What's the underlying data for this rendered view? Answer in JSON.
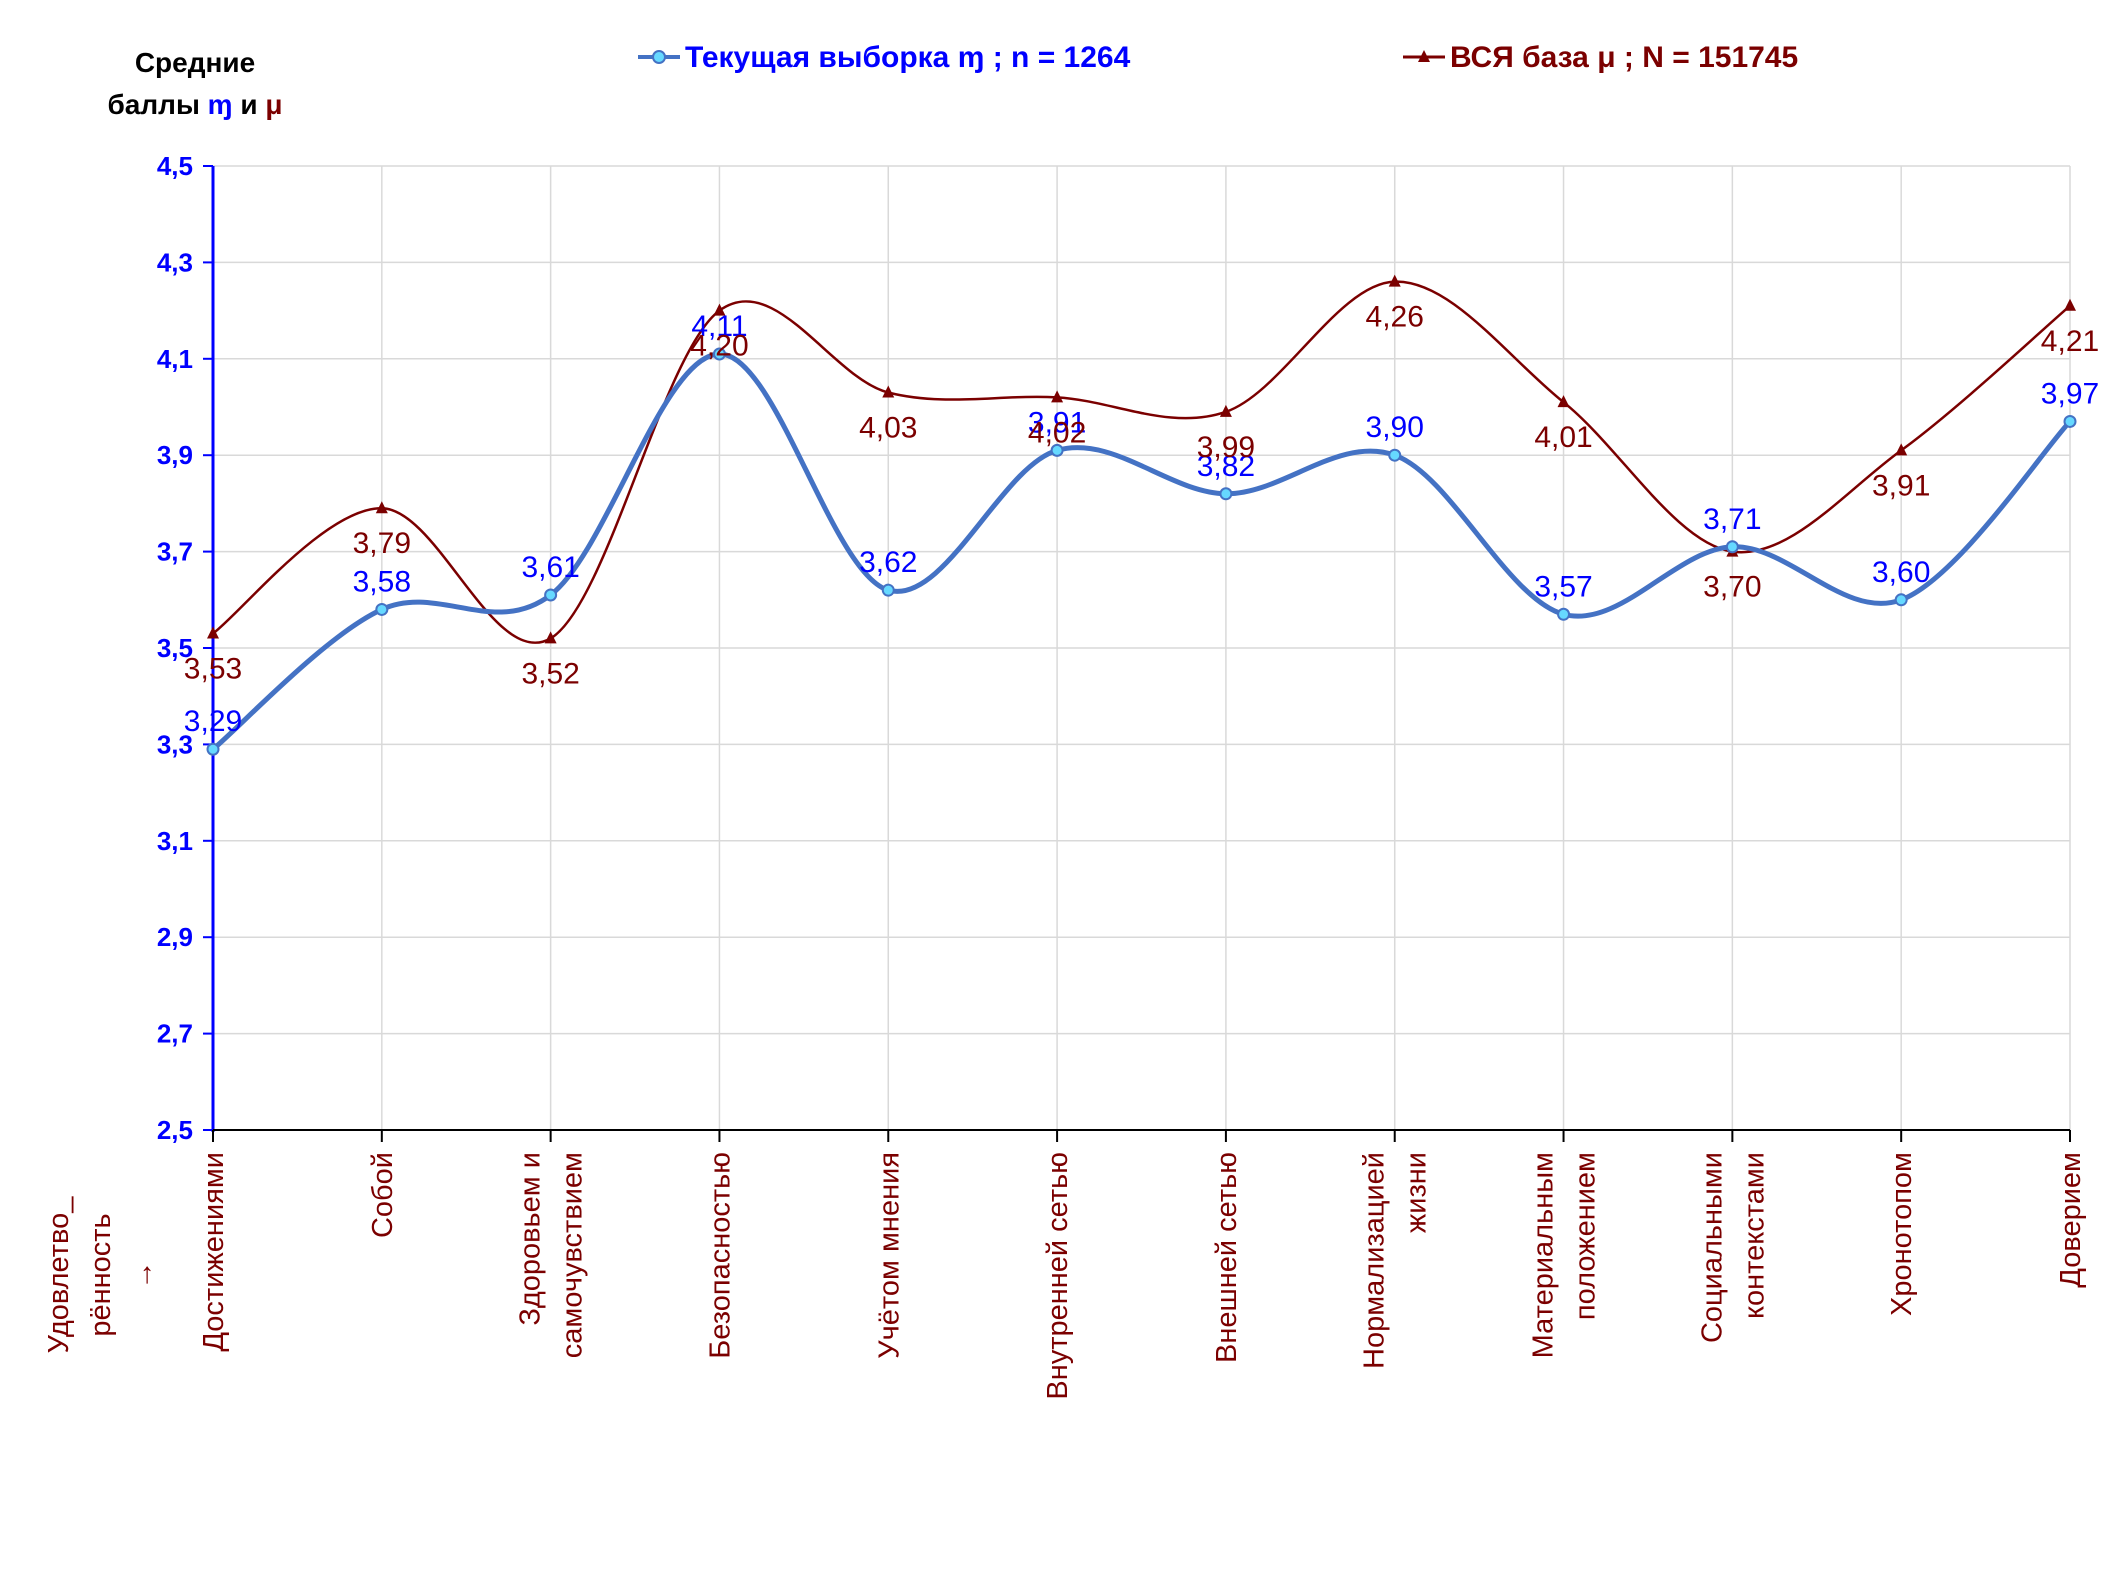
{
  "ylabel": {
    "line1": "Средние",
    "line2_prefix": "баллы ",
    "line2_sym1": "ɱ",
    "line2_mid": " и ",
    "line2_sym2": "μ"
  },
  "xlabel": {
    "line1": "Удовлетво_",
    "line2": "рённость",
    "line3": "→"
  },
  "legend": [
    {
      "label": "Текущая выборка ɱ ; n = 1264"
    },
    {
      "label": "ВСЯ база μ ; N = 151745"
    }
  ],
  "colors": {
    "current": "#4472C4",
    "current_marker": "#66D9FF",
    "current_label": "#0000FF",
    "base": "#7B0000",
    "base_label": "#7B0000",
    "yaxis": "#0000FF",
    "grid": "#D9D9D9",
    "category_text": "#7B0000"
  },
  "chart_data": {
    "type": "line",
    "categories": [
      [
        "Достижениями"
      ],
      [
        "Собой"
      ],
      [
        "Здоровьем и",
        "самочувствием"
      ],
      [
        "Безопасностью"
      ],
      [
        "Учётом мнения"
      ],
      [
        "Внутренней сетью"
      ],
      [
        "Внешней сетью"
      ],
      [
        "Нормализацией",
        "жизни"
      ],
      [
        "Материальным",
        "положением"
      ],
      [
        "Социальными",
        "контекстами"
      ],
      [
        "Хронотопом"
      ],
      [
        "Доверием"
      ]
    ],
    "series": [
      {
        "name": "Текущая выборка ɱ ; n = 1264",
        "values": [
          3.29,
          3.58,
          3.61,
          4.11,
          3.62,
          3.91,
          3.82,
          3.9,
          3.57,
          3.71,
          3.6,
          3.97
        ],
        "labels": [
          "3,29",
          "3,58",
          "3,61",
          "4,11",
          "3,62",
          "3,91",
          "3,82",
          "3,90",
          "3,57",
          "3,71",
          "3,60",
          "3,97"
        ]
      },
      {
        "name": "ВСЯ база μ ; N = 151745",
        "values": [
          3.53,
          3.79,
          3.52,
          4.2,
          4.03,
          4.02,
          3.99,
          4.26,
          4.01,
          3.7,
          3.91,
          4.21
        ],
        "labels": [
          "3,53",
          "3,79",
          "3,52",
          "4,20",
          "4,03",
          "4,02",
          "3,99",
          "4,26",
          "4,01",
          "3,70",
          "3,91",
          "4,21"
        ]
      }
    ],
    "yticks": [
      "2,5",
      "2,7",
      "2,9",
      "3,1",
      "3,3",
      "3,5",
      "3,7",
      "3,9",
      "4,1",
      "4,3",
      "4,5"
    ],
    "ylim": [
      2.5,
      4.5
    ],
    "grid": true,
    "legend_position": "top"
  }
}
